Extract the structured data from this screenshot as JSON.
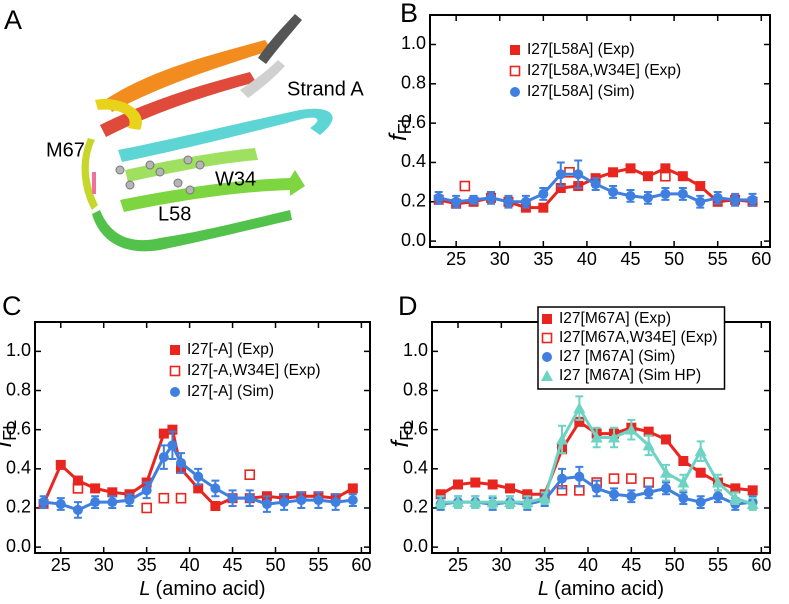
{
  "panel_a": {
    "label": "A",
    "annotations": [
      "Strand A",
      "M67",
      "W34",
      "L58"
    ]
  },
  "chart_data": [
    {
      "type": "line",
      "panel_label": "B",
      "ylabel": "f",
      "ylabel_sub": "FL",
      "xlim": [
        22,
        61
      ],
      "ylim": [
        -0.03,
        1.15
      ],
      "xticks": [
        25,
        30,
        35,
        40,
        45,
        50,
        55,
        60
      ],
      "yticks": [
        {
          "value": 0,
          "label": "0.0"
        },
        {
          "value": 0.2,
          "label": "0.2"
        },
        {
          "value": 0.4,
          "label": "0.4"
        },
        {
          "value": 0.6,
          "label": "0.6"
        },
        {
          "value": 0.8,
          "label": "0.8"
        },
        {
          "value": 1.0,
          "label": "1.0"
        }
      ],
      "legend_loc": "upper center",
      "legend_frame": false,
      "series": [
        {
          "name": "I27[L58A] (Exp)",
          "color": "#e8251f",
          "marker": "square",
          "line": true,
          "x": [
            23,
            25,
            27,
            29,
            31,
            33,
            35,
            37,
            39,
            41,
            43,
            45,
            47,
            49,
            51,
            53,
            55,
            57,
            59
          ],
          "values": [
            0.21,
            0.19,
            0.2,
            0.22,
            0.2,
            0.17,
            0.17,
            0.27,
            0.28,
            0.32,
            0.35,
            0.37,
            0.33,
            0.37,
            0.33,
            0.28,
            0.2,
            0.21,
            0.2
          ]
        },
        {
          "name": "I27[L58A,W34E] (Exp)",
          "color": "#e8251f",
          "marker": "open-square",
          "line": false,
          "x": [
            26,
            38,
            49
          ],
          "values": [
            0.28,
            0.35,
            0.33
          ]
        },
        {
          "name": "I27[L58A] (Sim)",
          "color": "#3f7fe0",
          "marker": "circle",
          "line": true,
          "x": [
            23,
            25,
            27,
            29,
            31,
            33,
            35,
            37,
            39,
            41,
            43,
            45,
            47,
            49,
            51,
            53,
            55,
            57,
            59
          ],
          "values": [
            0.22,
            0.2,
            0.21,
            0.22,
            0.2,
            0.2,
            0.24,
            0.34,
            0.34,
            0.29,
            0.25,
            0.23,
            0.22,
            0.24,
            0.24,
            0.2,
            0.22,
            0.21,
            0.21
          ],
          "errors": [
            0.03,
            0.03,
            0.02,
            0.03,
            0.03,
            0.03,
            0.03,
            0.06,
            0.07,
            0.03,
            0.03,
            0.03,
            0.03,
            0.03,
            0.03,
            0.03,
            0.03,
            0.03,
            0.03
          ]
        }
      ]
    },
    {
      "type": "line",
      "panel_label": "C",
      "ylabel": "f",
      "ylabel_sub": "FL",
      "xlabel_var": "L",
      "xlabel": "(amino acid)",
      "xlim": [
        22,
        61
      ],
      "ylim": [
        -0.03,
        1.15
      ],
      "xticks": [
        25,
        30,
        35,
        40,
        45,
        50,
        55,
        60
      ],
      "yticks": [
        {
          "value": 0,
          "label": "0.0"
        },
        {
          "value": 0.2,
          "label": "0.2"
        },
        {
          "value": 0.4,
          "label": "0.4"
        },
        {
          "value": 0.6,
          "label": "0.6"
        },
        {
          "value": 0.8,
          "label": "0.8"
        },
        {
          "value": 1.0,
          "label": "1.0"
        }
      ],
      "legend_loc": "upper center",
      "legend_frame": false,
      "series": [
        {
          "name": "I27[-A] (Exp)",
          "color": "#e8251f",
          "marker": "square",
          "line": true,
          "x": [
            23,
            25,
            27,
            29,
            31,
            33,
            35,
            37,
            38,
            39,
            41,
            43,
            45,
            47,
            49,
            51,
            53,
            55,
            57,
            59
          ],
          "values": [
            0.22,
            0.42,
            0.34,
            0.3,
            0.28,
            0.27,
            0.33,
            0.58,
            0.6,
            0.4,
            0.3,
            0.21,
            0.25,
            0.25,
            0.26,
            0.25,
            0.26,
            0.26,
            0.25,
            0.3
          ]
        },
        {
          "name": "I27[-A,W34E] (Exp)",
          "color": "#e8251f",
          "marker": "open-square",
          "line": false,
          "x": [
            27,
            35,
            37,
            39,
            47
          ],
          "values": [
            0.3,
            0.2,
            0.25,
            0.25,
            0.37
          ]
        },
        {
          "name": "I27[-A] (Sim)",
          "color": "#3f7fe0",
          "marker": "circle",
          "line": true,
          "x": [
            23,
            25,
            27,
            29,
            31,
            33,
            35,
            37,
            38,
            39,
            41,
            43,
            45,
            47,
            49,
            51,
            53,
            55,
            57,
            59
          ],
          "values": [
            0.23,
            0.22,
            0.19,
            0.23,
            0.23,
            0.24,
            0.29,
            0.46,
            0.52,
            0.43,
            0.36,
            0.3,
            0.25,
            0.25,
            0.22,
            0.23,
            0.24,
            0.24,
            0.23,
            0.24
          ],
          "errors": [
            0.03,
            0.03,
            0.04,
            0.03,
            0.03,
            0.03,
            0.04,
            0.06,
            0.07,
            0.05,
            0.04,
            0.04,
            0.04,
            0.04,
            0.04,
            0.04,
            0.04,
            0.04,
            0.04,
            0.03
          ]
        }
      ]
    },
    {
      "type": "line",
      "panel_label": "D",
      "ylabel": "f",
      "ylabel_sub": "FL",
      "xlabel_var": "L",
      "xlabel": "(amino acid)",
      "xlim": [
        22,
        61
      ],
      "ylim": [
        -0.03,
        1.15
      ],
      "xticks": [
        25,
        30,
        35,
        40,
        45,
        50,
        55,
        60
      ],
      "yticks": [
        {
          "value": 0,
          "label": "0.0"
        },
        {
          "value": 0.2,
          "label": "0.2"
        },
        {
          "value": 0.4,
          "label": "0.4"
        },
        {
          "value": 0.6,
          "label": "0.6"
        },
        {
          "value": 0.8,
          "label": "0.8"
        },
        {
          "value": 1.0,
          "label": "1.0"
        }
      ],
      "legend_loc": "upper center",
      "legend_frame": true,
      "series": [
        {
          "name": "I27[M67A] (Exp)",
          "color": "#e8251f",
          "marker": "square",
          "line": true,
          "x": [
            23,
            25,
            27,
            29,
            31,
            33,
            35,
            37,
            39,
            41,
            43,
            45,
            47,
            49,
            51,
            53,
            55,
            57,
            59
          ],
          "values": [
            0.27,
            0.32,
            0.33,
            0.32,
            0.3,
            0.27,
            0.27,
            0.5,
            0.64,
            0.58,
            0.58,
            0.61,
            0.59,
            0.55,
            0.44,
            0.38,
            0.33,
            0.3,
            0.29
          ]
        },
        {
          "name": "I27[M67A,W34E] (Exp)",
          "color": "#e8251f",
          "marker": "open-square",
          "line": false,
          "x": [
            37,
            39,
            41,
            43,
            45,
            47
          ],
          "values": [
            0.29,
            0.29,
            0.33,
            0.35,
            0.35,
            0.33
          ]
        },
        {
          "name": "I27 [M67A] (Sim)",
          "color": "#3f7fe0",
          "marker": "circle",
          "line": true,
          "x": [
            23,
            25,
            27,
            29,
            31,
            33,
            35,
            37,
            39,
            41,
            43,
            45,
            47,
            49,
            51,
            53,
            55,
            57,
            59
          ],
          "values": [
            0.22,
            0.23,
            0.23,
            0.22,
            0.23,
            0.22,
            0.24,
            0.35,
            0.36,
            0.3,
            0.27,
            0.26,
            0.28,
            0.3,
            0.25,
            0.23,
            0.26,
            0.22,
            0.23
          ],
          "errors": [
            0.03,
            0.03,
            0.03,
            0.03,
            0.03,
            0.03,
            0.03,
            0.05,
            0.05,
            0.04,
            0.03,
            0.03,
            0.03,
            0.03,
            0.03,
            0.03,
            0.03,
            0.03,
            0.03
          ]
        },
        {
          "name": "I27 [M67A] (Sim HP)",
          "color": "#6fd3c4",
          "marker": "triangle",
          "line": true,
          "x": [
            23,
            25,
            27,
            29,
            31,
            33,
            35,
            37,
            39,
            41,
            43,
            45,
            47,
            49,
            51,
            53,
            55,
            57,
            59
          ],
          "values": [
            0.23,
            0.23,
            0.23,
            0.23,
            0.23,
            0.23,
            0.25,
            0.55,
            0.71,
            0.56,
            0.56,
            0.6,
            0.52,
            0.38,
            0.33,
            0.49,
            0.33,
            0.25,
            0.22
          ],
          "errors": [
            0.03,
            0.03,
            0.03,
            0.03,
            0.03,
            0.03,
            0.03,
            0.07,
            0.06,
            0.05,
            0.05,
            0.05,
            0.05,
            0.04,
            0.04,
            0.05,
            0.04,
            0.03,
            0.03
          ]
        }
      ]
    }
  ]
}
